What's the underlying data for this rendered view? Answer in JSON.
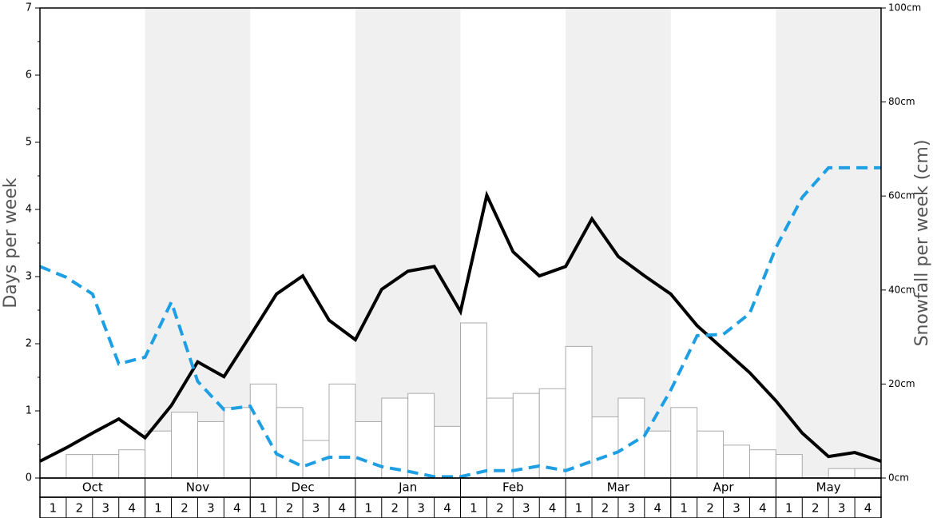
{
  "chart_data": {
    "type": "bar-line",
    "ylabel": "Days per week",
    "y2label": "Snowfall per week (cm)",
    "month_labels": [
      "Oct",
      "Nov",
      "Dec",
      "Jan",
      "Feb",
      "Mar",
      "Apr",
      "May"
    ],
    "categories": [
      "1",
      "2",
      "3",
      "4",
      "1",
      "2",
      "3",
      "4",
      "1",
      "2",
      "3",
      "4",
      "1",
      "2",
      "3",
      "4",
      "1",
      "2",
      "3",
      "4",
      "1",
      "2",
      "3",
      "4",
      "1",
      "2",
      "3",
      "4",
      "1",
      "2",
      "3",
      "4"
    ],
    "x": [
      0,
      1,
      2,
      3,
      4,
      5,
      6,
      7,
      8,
      9,
      10,
      11,
      12,
      13,
      14,
      15,
      16,
      17,
      18,
      19,
      20,
      21,
      22,
      23,
      24,
      25,
      26,
      27,
      28,
      29,
      30,
      31,
      32
    ],
    "xlim": [
      0,
      32
    ],
    "ylim": [
      0,
      7
    ],
    "yticks": [
      0,
      1,
      2,
      3,
      4,
      5,
      6,
      7
    ],
    "y2lim": [
      0,
      100
    ],
    "y2ticks": [
      {
        "value": 0,
        "label": "0cm"
      },
      {
        "value": 20,
        "label": "20cm"
      },
      {
        "value": 40,
        "label": "40cm"
      },
      {
        "value": 60,
        "label": "60cm"
      },
      {
        "value": 80,
        "label": "80cm"
      },
      {
        "value": 100,
        "label": "100cm"
      }
    ],
    "series": [
      {
        "type": "bar",
        "axis": "y2",
        "color": "#ffffff",
        "values": [
          0,
          5,
          5,
          6,
          10,
          14,
          12,
          15,
          20,
          15,
          8,
          20,
          12,
          17,
          18,
          11,
          33,
          17,
          18,
          19,
          28,
          13,
          17,
          10,
          15,
          10,
          7,
          6,
          5,
          0,
          2,
          2
        ]
      },
      {
        "type": "line",
        "color": "#000000",
        "values": [
          0.25,
          0.45,
          0.67,
          0.88,
          0.6,
          1.08,
          1.73,
          1.51,
          2.12,
          2.74,
          3.01,
          2.35,
          2.06,
          2.81,
          3.08,
          3.15,
          2.48,
          4.21,
          3.37,
          3.01,
          3.15,
          3.86,
          3.3,
          3.01,
          2.74,
          2.27,
          1.92,
          1.57,
          1.15,
          0.67,
          0.32,
          0.38,
          0.25
        ]
      },
      {
        "type": "line",
        "dashed": true,
        "color": "#1e9fe3",
        "values": [
          3.15,
          2.99,
          2.74,
          1.7,
          1.8,
          2.62,
          1.44,
          1.02,
          1.07,
          0.36,
          0.17,
          0.31,
          0.31,
          0.17,
          0.1,
          0.02,
          0.02,
          0.11,
          0.11,
          0.18,
          0.11,
          0.25,
          0.39,
          0.63,
          1.31,
          2.12,
          2.14,
          2.45,
          3.43,
          4.18,
          4.62,
          4.62,
          4.62
        ]
      }
    ]
  }
}
